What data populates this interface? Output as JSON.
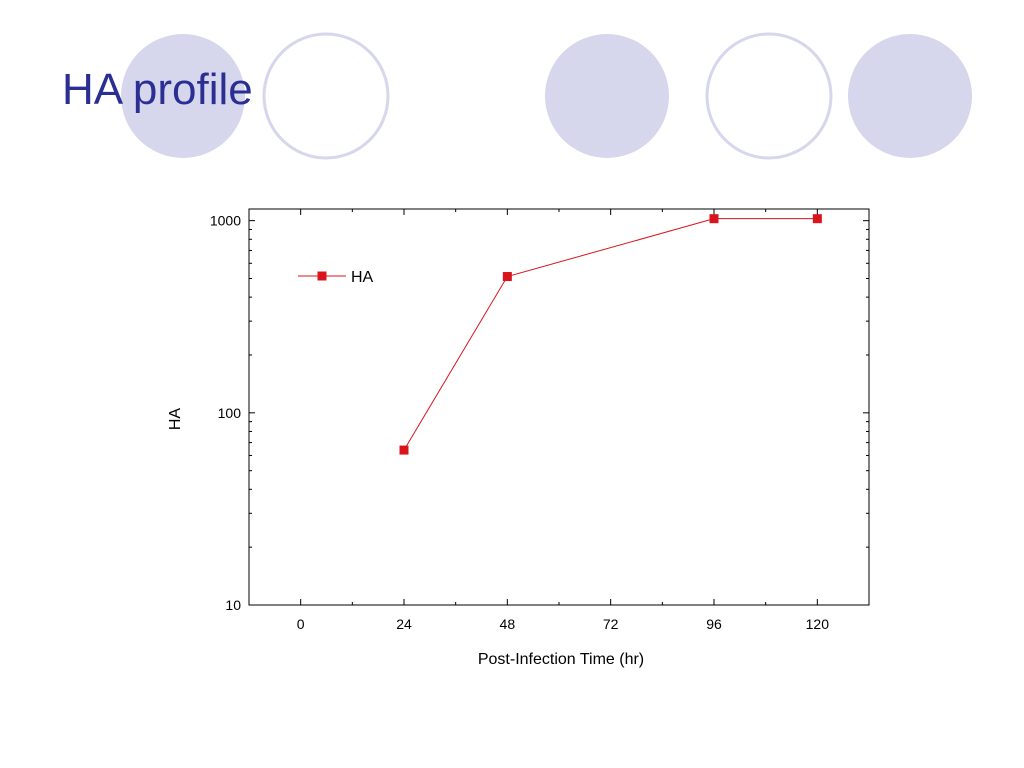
{
  "slide": {
    "title": "HA profile"
  },
  "colors": {
    "title": "#2b2f94",
    "circle_fill": "#d6d6ec",
    "circle_stroke": "#d6d6ec",
    "series": "#d9141c"
  },
  "chart_data": {
    "type": "line",
    "title": "",
    "xlabel": "Post-Infection Time (hr)",
    "ylabel": "HA",
    "xlim": [
      -12,
      132
    ],
    "ylim": [
      10,
      1150
    ],
    "yscale": "log",
    "xticks": [
      0,
      24,
      48,
      72,
      96,
      120
    ],
    "xtick_labels": [
      "0",
      "24",
      "48",
      "72",
      "96",
      "120"
    ],
    "yticks": [
      10,
      100,
      1000
    ],
    "ytick_labels": [
      "10",
      "100",
      "1000"
    ],
    "grid": false,
    "legend": "top-left",
    "series": [
      {
        "name": "HA",
        "marker": "square",
        "color": "#d9141c",
        "x": [
          24,
          48,
          96,
          120
        ],
        "y": [
          64,
          512,
          1024,
          1024
        ]
      }
    ]
  }
}
